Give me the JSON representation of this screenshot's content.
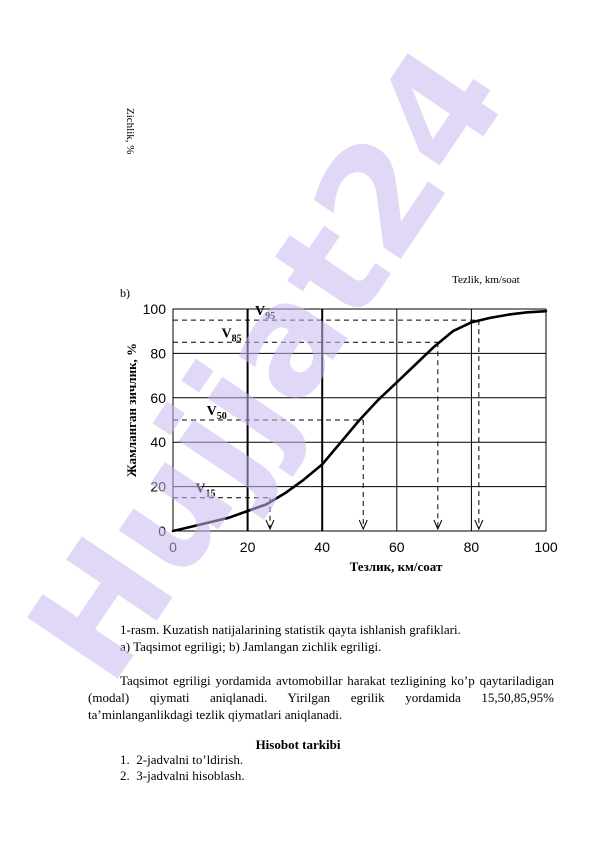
{
  "top_chart": {
    "ylabel": "Zichlik, %",
    "xlabel": "Tezlik, km/soat"
  },
  "panel_label": "b)",
  "chart_data": {
    "type": "line",
    "title": "",
    "xlabel": "Тезлик, км/соат",
    "ylabel": "Жамланган зичлик, %",
    "xlim": [
      0,
      100
    ],
    "ylim": [
      0,
      100
    ],
    "xticks": [
      0,
      20,
      40,
      60,
      80,
      100
    ],
    "yticks": [
      0,
      20,
      40,
      60,
      80,
      100
    ],
    "grid": true,
    "series": [
      {
        "x": [
          0,
          5,
          10,
          15,
          20,
          25,
          30,
          35,
          40,
          45,
          50,
          55,
          60,
          65,
          70,
          75,
          80,
          85,
          90,
          95,
          100
        ],
        "values": [
          0,
          2,
          4,
          6,
          9,
          12,
          17,
          23,
          30,
          40,
          50,
          59,
          67,
          75,
          83,
          90,
          94,
          96,
          97.5,
          98.5,
          99
        ]
      }
    ],
    "annotations": [
      {
        "label": "V",
        "sub": "15",
        "y": 15,
        "x": 26
      },
      {
        "label": "V",
        "sub": "50",
        "y": 50,
        "x": 51
      },
      {
        "label": "V",
        "sub": "85",
        "y": 85,
        "x": 71
      },
      {
        "label": "V",
        "sub": "95",
        "y": 95,
        "x": 82
      }
    ]
  },
  "caption": {
    "line1": "1-rasm. Kuzatish natijalarining statistik qayta ishlanish grafiklari.",
    "line2": "a) Taqsimot egriligi; b) Jamlangan zichlik egriligi."
  },
  "paragraph": "Taqsimot egriligi yordamida avtomobillar harakat tezligining ko’p qaytariladigan (modal) qiymati aniqlanadi. Yirilgan egrilik yordamida 15,50,85,95% ta’minlanganlikdagi tezlik qiymatlari aniqlanadi.",
  "report": {
    "title": "Hisobot tarkibi",
    "items": [
      {
        "num": "1.",
        "text": "2-jadvalni to’ldirish."
      },
      {
        "num": "2.",
        "text": "3-jadvalni hisoblash."
      }
    ]
  },
  "watermark": {
    "text": "Hujjat24",
    "color": "#c9b8f0"
  }
}
